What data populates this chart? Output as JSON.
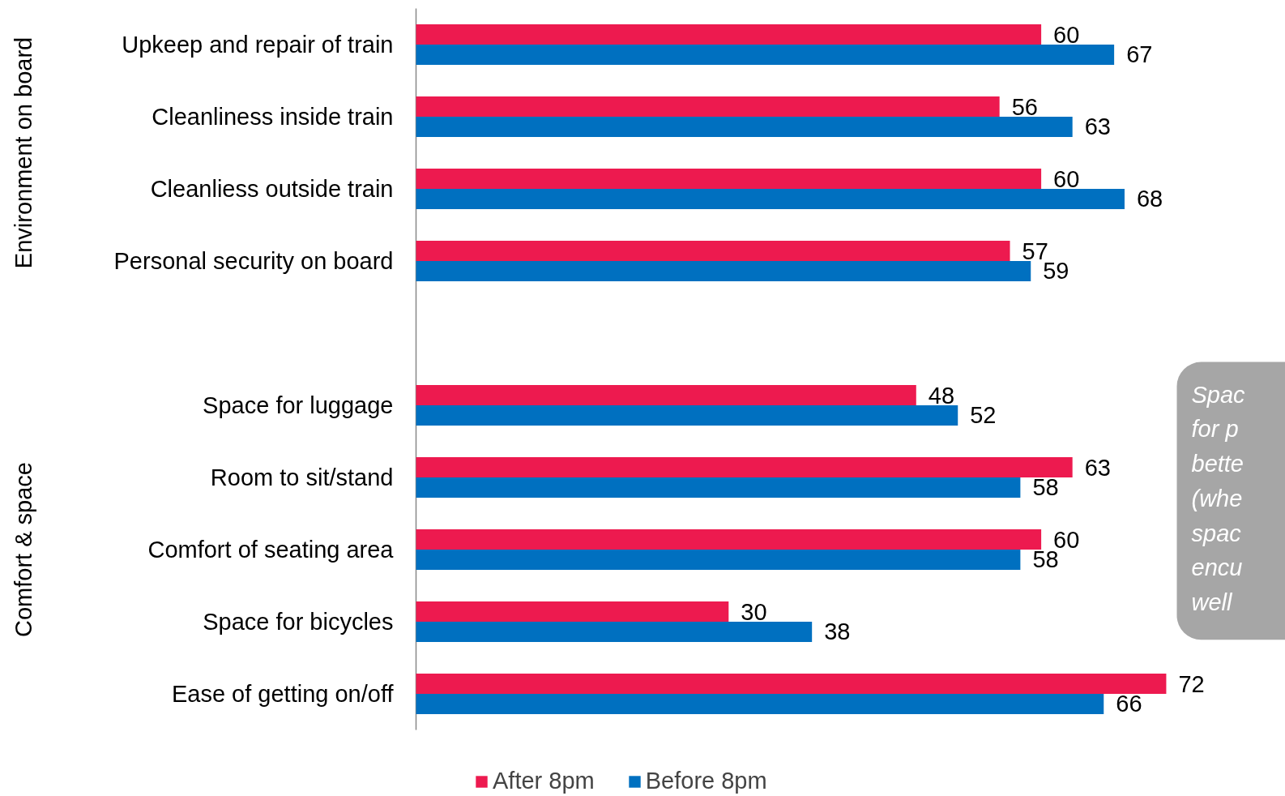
{
  "chart_data": {
    "type": "bar",
    "orientation": "horizontal",
    "categories": [
      "Upkeep and repair of train",
      "Cleanliness inside train",
      "Cleanliess outside train",
      "Personal security on board",
      null,
      "Space for luggage",
      "Room to sit/stand",
      "Comfort of seating area",
      "Space for bicycles",
      "Ease of getting on/off"
    ],
    "series": [
      {
        "name": "After 8pm",
        "color": "#ed1a4f",
        "values": [
          60,
          56,
          60,
          57,
          null,
          48,
          63,
          60,
          30,
          72
        ]
      },
      {
        "name": "Before 8pm",
        "color": "#0070c0",
        "values": [
          67,
          63,
          68,
          59,
          null,
          52,
          58,
          58,
          38,
          66
        ]
      }
    ],
    "annotations": [
      "Environment on board",
      "Comfort & space",
      "Spac\nfor p\nbette\n(whe\nspac\nencu\nwell"
    ],
    "data_labels": true,
    "grid": false,
    "legend": "bottom"
  }
}
